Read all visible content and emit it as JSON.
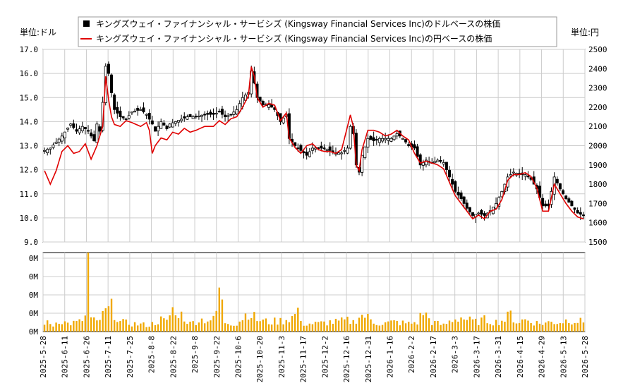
{
  "chart_data": {
    "type": "candlestick+line+volume",
    "legend": [
      {
        "label": "キングズウェイ・ファイナンシャル・サービシズ (Kingsway Financial Services Inc)のドルベースの株価",
        "color": "#000000",
        "kind": "candle"
      },
      {
        "label": "キングズウェイ・ファイナンシャル・サービシズ (Kingsway Financial Services Inc)の円ベースの株価",
        "color": "#e00000",
        "kind": "line"
      }
    ],
    "left_unit_label": "単位:ドル",
    "right_unit_label": "単位:円",
    "left_axis": {
      "min": 9.0,
      "max": 17.0,
      "ticks": [
        "9.0",
        "10.0",
        "11.0",
        "12.0",
        "13.0",
        "14.0",
        "15.0",
        "16.0",
        "17.0"
      ]
    },
    "right_axis": {
      "min": 1500,
      "max": 2500,
      "ticks": [
        "1500",
        "1600",
        "1700",
        "1800",
        "1900",
        "2000",
        "2100",
        "2200",
        "2300",
        "2400",
        "2500"
      ]
    },
    "volume_axis": {
      "ticks": [
        "0M",
        "0M",
        "0M",
        "0M",
        "0M"
      ]
    },
    "x_labels": [
      "2025-5-28",
      "2025-6-11",
      "2025-6-26",
      "2025-7-11",
      "2025-7-25",
      "2025-8-8",
      "2025-8-22",
      "2025-9-8",
      "2025-9-22",
      "2025-10-6",
      "2025-10-20",
      "2025-11-3",
      "2025-11-17",
      "2025-12-2",
      "2025-12-16",
      "2025-12-31",
      "2026-1-16",
      "2026-2-2",
      "2026-2-17",
      "2026-3-3",
      "2026-3-17",
      "2026-3-31",
      "2026-4-15",
      "2026-4-29",
      "2026-5-13",
      "2026-5-28"
    ],
    "price_usd_keypoints": [
      [
        0,
        12.8
      ],
      [
        2,
        12.9
      ],
      [
        6,
        13.4
      ],
      [
        9,
        13.9
      ],
      [
        11,
        13.6
      ],
      [
        13,
        13.8
      ],
      [
        15,
        13.6
      ],
      [
        17,
        13.2
      ],
      [
        18,
        13.9
      ],
      [
        19,
        13.6
      ],
      [
        20,
        14.8
      ],
      [
        21,
        16.3
      ],
      [
        22,
        16.0
      ],
      [
        23,
        15.2
      ],
      [
        24,
        14.5
      ],
      [
        26,
        14.2
      ],
      [
        28,
        14.1
      ],
      [
        30,
        14.4
      ],
      [
        33,
        14.5
      ],
      [
        35,
        14.3
      ],
      [
        37,
        13.9
      ],
      [
        38,
        13.6
      ],
      [
        40,
        14.0
      ],
      [
        42,
        13.7
      ],
      [
        43,
        13.9
      ],
      [
        45,
        14.0
      ],
      [
        47,
        14.1
      ],
      [
        49,
        14.2
      ],
      [
        52,
        14.2
      ],
      [
        55,
        14.3
      ],
      [
        58,
        14.3
      ],
      [
        60,
        14.4
      ],
      [
        62,
        14.2
      ],
      [
        64,
        14.3
      ],
      [
        66,
        14.5
      ],
      [
        68,
        15.0
      ],
      [
        70,
        15.2
      ],
      [
        71,
        16.1
      ],
      [
        72,
        15.6
      ],
      [
        73,
        15.0
      ],
      [
        75,
        14.7
      ],
      [
        77,
        14.7
      ],
      [
        79,
        14.5
      ],
      [
        81,
        14.0
      ],
      [
        83,
        14.3
      ],
      [
        84,
        13.3
      ],
      [
        86,
        13.0
      ],
      [
        88,
        12.8
      ],
      [
        90,
        12.6
      ],
      [
        92,
        12.9
      ],
      [
        94,
        12.9
      ],
      [
        96,
        12.9
      ],
      [
        98,
        12.8
      ],
      [
        100,
        12.7
      ],
      [
        102,
        12.7
      ],
      [
        104,
        12.9
      ],
      [
        105,
        13.8
      ],
      [
        106,
        13.5
      ],
      [
        107,
        12.2
      ],
      [
        108,
        11.9
      ],
      [
        109,
        12.6
      ],
      [
        111,
        13.3
      ],
      [
        113,
        13.2
      ],
      [
        115,
        13.3
      ],
      [
        117,
        13.3
      ],
      [
        119,
        13.3
      ],
      [
        121,
        13.5
      ],
      [
        123,
        13.3
      ],
      [
        125,
        13.0
      ],
      [
        127,
        12.9
      ],
      [
        129,
        12.2
      ],
      [
        131,
        12.4
      ],
      [
        133,
        12.3
      ],
      [
        135,
        12.4
      ],
      [
        137,
        12.3
      ],
      [
        139,
        11.7
      ],
      [
        141,
        11.1
      ],
      [
        143,
        10.8
      ],
      [
        145,
        10.4
      ],
      [
        147,
        10.1
      ],
      [
        149,
        10.2
      ],
      [
        151,
        10.1
      ],
      [
        153,
        10.3
      ],
      [
        155,
        10.6
      ],
      [
        157,
        11.1
      ],
      [
        159,
        11.7
      ],
      [
        161,
        11.9
      ],
      [
        163,
        11.8
      ],
      [
        165,
        11.8
      ],
      [
        167,
        11.6
      ],
      [
        169,
        11.2
      ],
      [
        171,
        10.5
      ],
      [
        173,
        10.5
      ],
      [
        175,
        11.7
      ],
      [
        177,
        11.2
      ],
      [
        179,
        10.8
      ],
      [
        181,
        10.5
      ],
      [
        183,
        10.2
      ],
      [
        185,
        10.1
      ]
    ],
    "price_jpy_keypoints": [
      [
        0,
        1870
      ],
      [
        2,
        1800
      ],
      [
        4,
        1870
      ],
      [
        6,
        1970
      ],
      [
        8,
        2000
      ],
      [
        10,
        1960
      ],
      [
        12,
        1970
      ],
      [
        14,
        2010
      ],
      [
        16,
        1930
      ],
      [
        18,
        2000
      ],
      [
        20,
        2100
      ],
      [
        21,
        2360
      ],
      [
        22,
        2240
      ],
      [
        23,
        2150
      ],
      [
        24,
        2110
      ],
      [
        26,
        2100
      ],
      [
        28,
        2130
      ],
      [
        30,
        2120
      ],
      [
        33,
        2100
      ],
      [
        35,
        2120
      ],
      [
        36,
        2080
      ],
      [
        37,
        1960
      ],
      [
        38,
        2000
      ],
      [
        40,
        2040
      ],
      [
        42,
        2030
      ],
      [
        44,
        2070
      ],
      [
        46,
        2060
      ],
      [
        48,
        2090
      ],
      [
        50,
        2070
      ],
      [
        52,
        2080
      ],
      [
        55,
        2100
      ],
      [
        58,
        2100
      ],
      [
        60,
        2130
      ],
      [
        62,
        2110
      ],
      [
        64,
        2140
      ],
      [
        66,
        2150
      ],
      [
        68,
        2200
      ],
      [
        70,
        2260
      ],
      [
        71,
        2410
      ],
      [
        72,
        2360
      ],
      [
        73,
        2250
      ],
      [
        75,
        2200
      ],
      [
        77,
        2220
      ],
      [
        79,
        2210
      ],
      [
        81,
        2130
      ],
      [
        83,
        2170
      ],
      [
        84,
        2040
      ],
      [
        86,
        1990
      ],
      [
        88,
        1960
      ],
      [
        90,
        2000
      ],
      [
        92,
        2010
      ],
      [
        94,
        1980
      ],
      [
        96,
        1970
      ],
      [
        98,
        1970
      ],
      [
        100,
        1960
      ],
      [
        102,
        1980
      ],
      [
        104,
        2100
      ],
      [
        105,
        2160
      ],
      [
        106,
        2100
      ],
      [
        107,
        1900
      ],
      [
        108,
        1870
      ],
      [
        109,
        1980
      ],
      [
        111,
        2080
      ],
      [
        113,
        2080
      ],
      [
        115,
        2070
      ],
      [
        117,
        2050
      ],
      [
        119,
        2060
      ],
      [
        121,
        2080
      ],
      [
        123,
        2050
      ],
      [
        125,
        2030
      ],
      [
        127,
        1960
      ],
      [
        129,
        1910
      ],
      [
        131,
        1920
      ],
      [
        133,
        1910
      ],
      [
        135,
        1900
      ],
      [
        137,
        1880
      ],
      [
        139,
        1810
      ],
      [
        141,
        1740
      ],
      [
        143,
        1700
      ],
      [
        145,
        1660
      ],
      [
        147,
        1620
      ],
      [
        149,
        1640
      ],
      [
        151,
        1620
      ],
      [
        153,
        1660
      ],
      [
        155,
        1670
      ],
      [
        157,
        1720
      ],
      [
        159,
        1820
      ],
      [
        161,
        1850
      ],
      [
        163,
        1850
      ],
      [
        165,
        1860
      ],
      [
        167,
        1840
      ],
      [
        169,
        1780
      ],
      [
        171,
        1660
      ],
      [
        173,
        1660
      ],
      [
        175,
        1800
      ],
      [
        177,
        1750
      ],
      [
        179,
        1700
      ],
      [
        181,
        1660
      ],
      [
        183,
        1630
      ],
      [
        185,
        1620
      ]
    ],
    "volume_keypoints": [
      [
        0,
        0.12
      ],
      [
        3,
        0.08
      ],
      [
        5,
        0.15
      ],
      [
        8,
        0.1
      ],
      [
        12,
        0.12
      ],
      [
        14,
        0.18
      ],
      [
        15,
        1.0
      ],
      [
        16,
        0.15
      ],
      [
        18,
        0.12
      ],
      [
        20,
        0.2
      ],
      [
        21,
        0.25
      ],
      [
        23,
        0.3
      ],
      [
        26,
        0.12
      ],
      [
        30,
        0.1
      ],
      [
        36,
        0.08
      ],
      [
        40,
        0.15
      ],
      [
        42,
        0.12
      ],
      [
        44,
        0.3
      ],
      [
        45,
        0.18
      ],
      [
        46,
        0.25
      ],
      [
        50,
        0.1
      ],
      [
        53,
        0.15
      ],
      [
        58,
        0.15
      ],
      [
        59,
        0.25
      ],
      [
        60,
        0.55
      ],
      [
        62,
        0.12
      ],
      [
        66,
        0.1
      ],
      [
        70,
        0.25
      ],
      [
        73,
        0.15
      ],
      [
        77,
        0.12
      ],
      [
        82,
        0.14
      ],
      [
        86,
        0.2
      ],
      [
        87,
        0.32
      ],
      [
        88,
        0.1
      ],
      [
        94,
        0.1
      ],
      [
        98,
        0.12
      ],
      [
        100,
        0.12
      ],
      [
        104,
        0.14
      ],
      [
        106,
        0.12
      ],
      [
        108,
        0.2
      ],
      [
        110,
        0.2
      ],
      [
        113,
        0.12
      ],
      [
        116,
        0.1
      ],
      [
        120,
        0.12
      ],
      [
        125,
        0.1
      ],
      [
        128,
        0.12
      ],
      [
        130,
        0.25
      ],
      [
        133,
        0.12
      ],
      [
        137,
        0.08
      ],
      [
        140,
        0.15
      ],
      [
        143,
        0.18
      ],
      [
        145,
        0.15
      ],
      [
        148,
        0.12
      ],
      [
        151,
        0.15
      ],
      [
        155,
        0.12
      ],
      [
        158,
        0.15
      ],
      [
        160,
        0.22
      ],
      [
        162,
        0.12
      ],
      [
        165,
        0.15
      ],
      [
        168,
        0.12
      ],
      [
        170,
        0.1
      ],
      [
        174,
        0.12
      ],
      [
        177,
        0.12
      ],
      [
        180,
        0.15
      ],
      [
        182,
        0.14
      ],
      [
        185,
        0.12
      ]
    ]
  }
}
